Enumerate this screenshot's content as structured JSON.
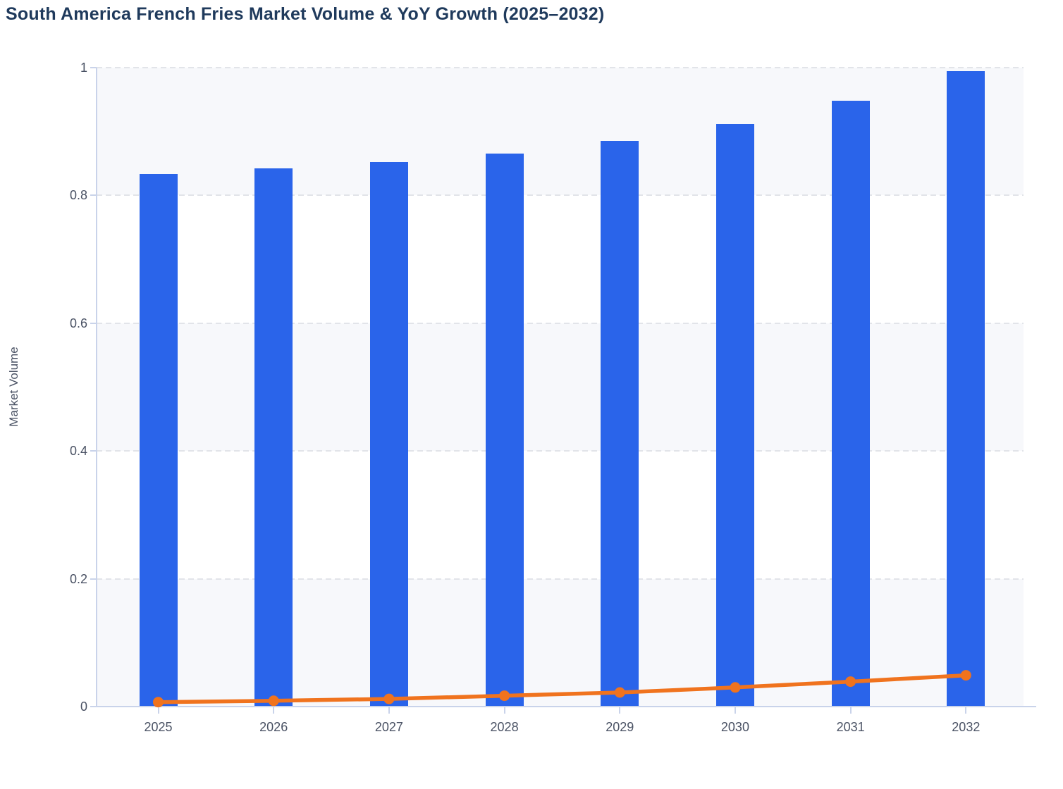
{
  "colors": {
    "bar_blue": "#2a64ea",
    "line_orange": "#f0731e",
    "title_text": "#1f3a5c",
    "axis_label_text": "#4a5264",
    "axis_line": "#c9d3ea",
    "gridline": "#e2e4e9",
    "band_shade": "#f7f8fb",
    "background": "#ffffff"
  },
  "chart_data": {
    "type": "combo-bar-line",
    "title": "South America French Fries Market Volume & YoY Growth (2025–2032)",
    "xlabel": "",
    "ylabel": "Market Volume",
    "categories": [
      "2025",
      "2026",
      "2027",
      "2028",
      "2029",
      "2030",
      "2031",
      "2032"
    ],
    "series": [
      {
        "name": "Market Volume",
        "type": "bar",
        "color": "#2a64ea",
        "values": [
          0.834,
          0.842,
          0.852,
          0.866,
          0.885,
          0.912,
          0.948,
          0.995
        ]
      },
      {
        "name": "YoY Growth",
        "type": "line",
        "color": "#f0731e",
        "values": [
          0.007,
          0.009,
          0.012,
          0.017,
          0.022,
          0.03,
          0.039,
          0.049
        ]
      }
    ],
    "ylim": [
      0,
      1
    ],
    "ytick_labels": [
      "0",
      "0.2",
      "0.4",
      "0.6",
      "0.8",
      "1"
    ],
    "grid": "horizontal-dashed",
    "plot_bands": "alternating-shaded-from-top",
    "legend_position": "none"
  }
}
